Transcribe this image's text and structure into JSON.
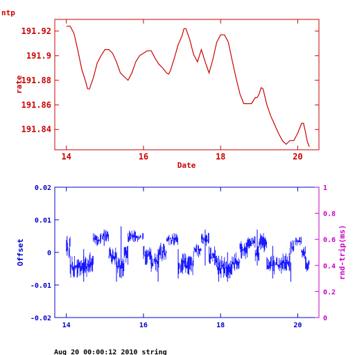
{
  "footer": "Aug 20 00:00:12 2010 string",
  "chart_data": [
    {
      "type": "line",
      "title": "ntp",
      "xlabel": "Date",
      "ylabel": "rate",
      "xlim": [
        13.7,
        20.55
      ],
      "ylim": [
        191.8235,
        191.9295
      ],
      "xticks": [
        14,
        16,
        18,
        20
      ],
      "yticks": [
        191.84,
        191.86,
        191.88,
        191.9,
        191.92
      ],
      "color": "#cc0000",
      "series": [
        {
          "x": [
            14.0,
            14.1,
            14.2,
            14.3,
            14.4,
            14.5,
            14.55,
            14.6,
            14.7,
            14.8,
            14.9,
            15.0,
            15.1,
            15.2,
            15.3,
            15.4,
            15.5,
            15.6,
            15.7,
            15.8,
            15.9,
            16.0,
            16.1,
            16.2,
            16.3,
            16.4,
            16.5,
            16.6,
            16.65,
            16.7,
            16.8,
            16.9,
            17.0,
            17.05,
            17.1,
            17.2,
            17.3,
            17.4,
            17.5,
            17.6,
            17.7,
            17.8,
            17.9,
            18.0,
            18.1,
            18.2,
            18.3,
            18.4,
            18.5,
            18.6,
            18.7,
            18.8,
            18.9,
            18.95,
            19.0,
            19.05,
            19.1,
            19.2,
            19.3,
            19.4,
            19.5,
            19.6,
            19.7,
            19.8,
            19.9,
            20.0,
            20.1,
            20.15,
            20.2,
            20.25,
            20.3
          ],
          "y": [
            191.924,
            191.924,
            191.918,
            191.904,
            191.889,
            191.879,
            191.873,
            191.873,
            191.882,
            191.894,
            191.9,
            191.905,
            191.905,
            191.902,
            191.895,
            191.886,
            191.883,
            191.88,
            191.886,
            191.895,
            191.9,
            191.902,
            191.904,
            191.904,
            191.898,
            191.893,
            191.89,
            191.886,
            191.885,
            191.888,
            191.898,
            191.909,
            191.916,
            191.922,
            191.922,
            191.913,
            191.901,
            191.895,
            191.905,
            191.895,
            191.886,
            191.897,
            191.911,
            191.917,
            191.917,
            191.911,
            191.896,
            191.882,
            191.869,
            191.861,
            191.861,
            191.861,
            191.866,
            191.866,
            191.869,
            191.874,
            191.873,
            191.86,
            191.851,
            191.844,
            191.837,
            191.831,
            191.828,
            191.831,
            191.831,
            191.837,
            191.845,
            191.845,
            191.838,
            191.83,
            191.826
          ]
        }
      ]
    },
    {
      "type": "line",
      "xlabel": "",
      "ylabel": "Offset",
      "y2label": "rnd-trip(ms)",
      "xlim": [
        13.7,
        20.55
      ],
      "ylim": [
        -0.02,
        0.02
      ],
      "y2lim": [
        0,
        1
      ],
      "xticks": [
        14,
        16,
        18,
        20
      ],
      "yticks": [
        -0.02,
        -0.01,
        0,
        0.01,
        0.02
      ],
      "y2ticks": [
        0,
        0.2,
        0.4,
        0.6,
        0.8,
        1
      ],
      "color": "#0000ff",
      "series": [
        {
          "segments": [
            {
              "x0": 14.0,
              "x1": 14.1,
              "lo": -0.002,
              "hi": 0.005
            },
            {
              "x0": 14.1,
              "x1": 14.3,
              "lo": -0.008,
              "hi": -0.001
            },
            {
              "x0": 14.3,
              "x1": 14.6,
              "lo": -0.008,
              "hi": -0.001
            },
            {
              "x0": 14.6,
              "x1": 14.7,
              "lo": -0.007,
              "hi": 0.0
            },
            {
              "x0": 14.7,
              "x1": 14.9,
              "lo": 0.002,
              "hi": 0.006
            },
            {
              "x0": 14.9,
              "x1": 15.1,
              "lo": 0.003,
              "hi": 0.007
            },
            {
              "x0": 15.1,
              "x1": 15.3,
              "lo": -0.004,
              "hi": 0.002
            },
            {
              "x0": 15.3,
              "x1": 15.5,
              "lo": -0.008,
              "hi": -0.001
            },
            {
              "x0": 15.5,
              "x1": 15.6,
              "lo": -0.004,
              "hi": 0.002
            },
            {
              "x0": 15.6,
              "x1": 15.8,
              "lo": 0.003,
              "hi": 0.007
            },
            {
              "x0": 15.8,
              "x1": 16.0,
              "lo": 0.003,
              "hi": 0.006
            },
            {
              "x0": 16.0,
              "x1": 16.2,
              "lo": -0.004,
              "hi": 0.002
            },
            {
              "x0": 16.2,
              "x1": 16.4,
              "lo": -0.006,
              "hi": 0.0
            },
            {
              "x0": 16.4,
              "x1": 16.6,
              "lo": -0.003,
              "hi": 0.003
            },
            {
              "x0": 16.6,
              "x1": 16.9,
              "lo": 0.002,
              "hi": 0.006
            },
            {
              "x0": 16.9,
              "x1": 17.1,
              "lo": -0.007,
              "hi": 0.0
            },
            {
              "x0": 17.1,
              "x1": 17.3,
              "lo": -0.007,
              "hi": -0.001
            },
            {
              "x0": 17.3,
              "x1": 17.5,
              "lo": -0.002,
              "hi": 0.003
            },
            {
              "x0": 17.5,
              "x1": 17.7,
              "lo": 0.002,
              "hi": 0.006
            },
            {
              "x0": 17.7,
              "x1": 17.9,
              "lo": -0.004,
              "hi": 0.002
            },
            {
              "x0": 17.9,
              "x1": 18.1,
              "lo": -0.008,
              "hi": -0.001
            },
            {
              "x0": 18.1,
              "x1": 18.3,
              "lo": -0.008,
              "hi": -0.002
            },
            {
              "x0": 18.3,
              "x1": 18.5,
              "lo": -0.006,
              "hi": 0.0
            },
            {
              "x0": 18.5,
              "x1": 18.7,
              "lo": -0.002,
              "hi": 0.004
            },
            {
              "x0": 18.7,
              "x1": 18.9,
              "lo": 0.001,
              "hi": 0.005
            },
            {
              "x0": 18.9,
              "x1": 19.0,
              "lo": -0.003,
              "hi": 0.002
            },
            {
              "x0": 19.0,
              "x1": 19.2,
              "lo": 0.0,
              "hi": 0.006
            },
            {
              "x0": 19.2,
              "x1": 19.4,
              "lo": -0.007,
              "hi": -0.001
            },
            {
              "x0": 19.4,
              "x1": 19.6,
              "lo": -0.007,
              "hi": -0.001
            },
            {
              "x0": 19.6,
              "x1": 19.8,
              "lo": -0.006,
              "hi": 0.0
            },
            {
              "x0": 19.8,
              "x1": 19.9,
              "lo": -0.001,
              "hi": 0.004
            },
            {
              "x0": 19.9,
              "x1": 20.1,
              "lo": 0.002,
              "hi": 0.005
            },
            {
              "x0": 20.1,
              "x1": 20.2,
              "lo": -0.002,
              "hi": 0.002
            },
            {
              "x0": 20.2,
              "x1": 20.3,
              "lo": -0.006,
              "hi": -0.001
            }
          ],
          "spikes": [
            {
              "x": 14.02,
              "lo": -0.001,
              "hi": 0.005
            },
            {
              "x": 14.45,
              "lo": -0.009,
              "hi": 0.001
            },
            {
              "x": 14.98,
              "lo": 0.002,
              "hi": 0.007
            },
            {
              "x": 15.3,
              "lo": -0.009,
              "hi": 0.0
            },
            {
              "x": 15.42,
              "lo": -0.003,
              "hi": 0.008
            },
            {
              "x": 16.38,
              "lo": -0.009,
              "hi": 0.001
            },
            {
              "x": 16.9,
              "lo": -0.008,
              "hi": 0.001
            },
            {
              "x": 17.6,
              "lo": -0.004,
              "hi": 0.007
            },
            {
              "x": 17.95,
              "lo": -0.009,
              "hi": -0.001
            },
            {
              "x": 18.18,
              "lo": -0.009,
              "hi": 0.0
            },
            {
              "x": 18.95,
              "lo": -0.004,
              "hi": 0.007
            },
            {
              "x": 19.35,
              "lo": -0.008,
              "hi": 0.002
            },
            {
              "x": 19.82,
              "lo": -0.009,
              "hi": -0.003
            }
          ]
        }
      ]
    }
  ]
}
